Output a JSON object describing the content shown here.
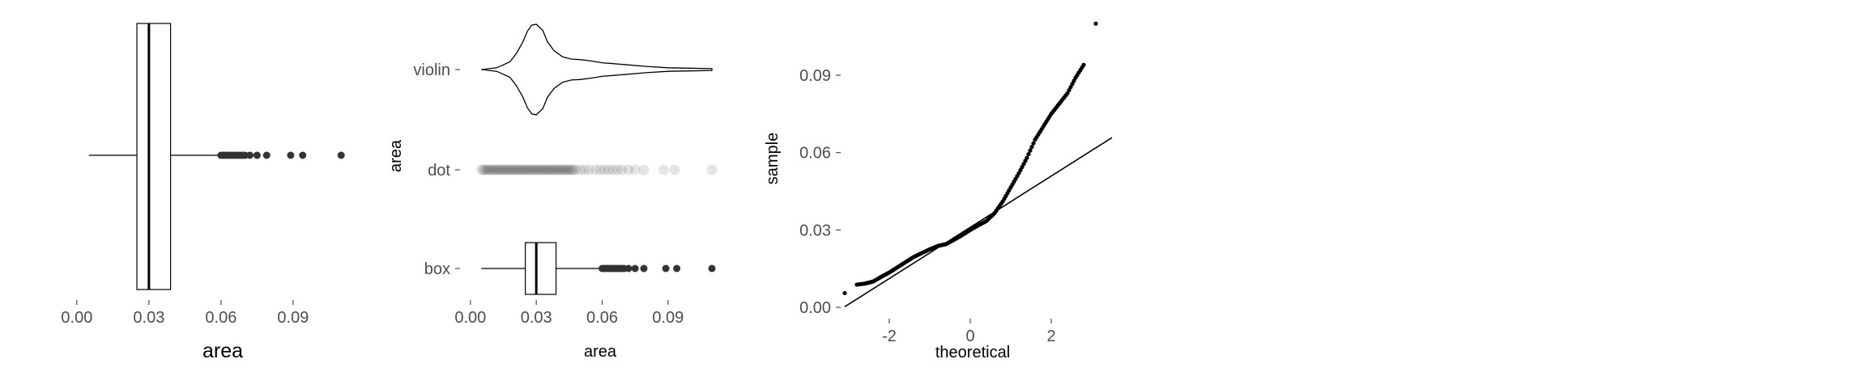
{
  "colors": {
    "ink": "#000000",
    "tick_text": "#4d4d4d",
    "point": "#333333"
  },
  "chart_data": [
    {
      "type": "box",
      "xlabel": "area",
      "ylabel": "",
      "xlim": [
        -0.004,
        0.117
      ],
      "xticks": [
        0.0,
        0.03,
        0.06,
        0.09
      ],
      "xtick_labels": [
        "0.00",
        "0.03",
        "0.06",
        "0.09"
      ],
      "box": {
        "whisker_low": 0.005,
        "q1": 0.025,
        "median": 0.03,
        "q3": 0.039,
        "whisker_high": 0.059
      },
      "outliers": [
        0.06,
        0.061,
        0.062,
        0.063,
        0.064,
        0.065,
        0.066,
        0.067,
        0.068,
        0.069,
        0.07,
        0.072,
        0.075,
        0.079,
        0.089,
        0.094,
        0.11
      ]
    },
    {
      "type": "distribution-comparison",
      "xlabel": "area",
      "ylabel": "area",
      "xlim": [
        -0.004,
        0.117
      ],
      "xticks": [
        0.0,
        0.03,
        0.06,
        0.09
      ],
      "xtick_labels": [
        "0.00",
        "0.03",
        "0.06",
        "0.09"
      ],
      "categories": [
        "violin",
        "dot",
        "box"
      ],
      "violin": {
        "x": [
          0.005,
          0.012,
          0.018,
          0.021,
          0.024,
          0.026,
          0.028,
          0.03,
          0.033,
          0.035,
          0.038,
          0.042,
          0.046,
          0.05,
          0.055,
          0.06,
          0.065,
          0.07,
          0.08,
          0.09,
          0.1,
          0.11
        ],
        "half_width": [
          0.0,
          0.04,
          0.17,
          0.36,
          0.62,
          0.85,
          0.98,
          1.0,
          0.86,
          0.62,
          0.42,
          0.28,
          0.23,
          0.22,
          0.19,
          0.15,
          0.13,
          0.11,
          0.07,
          0.04,
          0.03,
          0.02
        ]
      },
      "dot": {
        "dense_range": [
          0.005,
          0.047
        ],
        "values": [
          0.048,
          0.05,
          0.052,
          0.054,
          0.057,
          0.059,
          0.061,
          0.063,
          0.065,
          0.067,
          0.069,
          0.072,
          0.075,
          0.079,
          0.088,
          0.093,
          0.11
        ]
      },
      "box": {
        "whisker_low": 0.005,
        "q1": 0.025,
        "median": 0.03,
        "q3": 0.039,
        "whisker_high": 0.059
      },
      "box_outliers": [
        0.06,
        0.061,
        0.062,
        0.063,
        0.064,
        0.065,
        0.066,
        0.067,
        0.068,
        0.069,
        0.07,
        0.072,
        0.075,
        0.079,
        0.089,
        0.094,
        0.11
      ]
    },
    {
      "type": "qq",
      "xlabel": "theoretical",
      "ylabel": "sample",
      "xlim": [
        -3.2,
        3.5
      ],
      "ylim": [
        -0.002,
        0.112
      ],
      "xticks": [
        -2,
        0,
        2
      ],
      "xtick_labels": [
        "-2",
        "0",
        "2"
      ],
      "yticks": [
        0.0,
        0.03,
        0.06,
        0.09
      ],
      "ytick_labels": [
        "0.00",
        "0.03",
        "0.06",
        "0.09"
      ],
      "reference_line": {
        "x": [
          -3.1,
          3.5
        ],
        "y": [
          0.0002,
          0.0658
        ]
      },
      "points": [
        [
          -3.1,
          0.0055
        ],
        [
          -2.8,
          0.0088
        ],
        [
          -2.6,
          0.0092
        ],
        [
          -2.4,
          0.01
        ],
        [
          -2.2,
          0.0118
        ],
        [
          -2.0,
          0.0135
        ],
        [
          -1.8,
          0.0155
        ],
        [
          -1.6,
          0.0175
        ],
        [
          -1.4,
          0.0195
        ],
        [
          -1.2,
          0.021
        ],
        [
          -1.0,
          0.0225
        ],
        [
          -0.8,
          0.0238
        ],
        [
          -0.6,
          0.0245
        ],
        [
          -0.4,
          0.0262
        ],
        [
          -0.2,
          0.028
        ],
        [
          0.0,
          0.03
        ],
        [
          0.2,
          0.0318
        ],
        [
          0.4,
          0.0335
        ],
        [
          0.6,
          0.0365
        ],
        [
          0.8,
          0.041
        ],
        [
          1.0,
          0.0465
        ],
        [
          1.2,
          0.052
        ],
        [
          1.4,
          0.058
        ],
        [
          1.6,
          0.065
        ],
        [
          1.8,
          0.07
        ],
        [
          2.0,
          0.075
        ],
        [
          2.2,
          0.079
        ],
        [
          2.4,
          0.083
        ],
        [
          2.6,
          0.089
        ],
        [
          2.8,
          0.094
        ],
        [
          3.1,
          0.11
        ]
      ]
    }
  ]
}
